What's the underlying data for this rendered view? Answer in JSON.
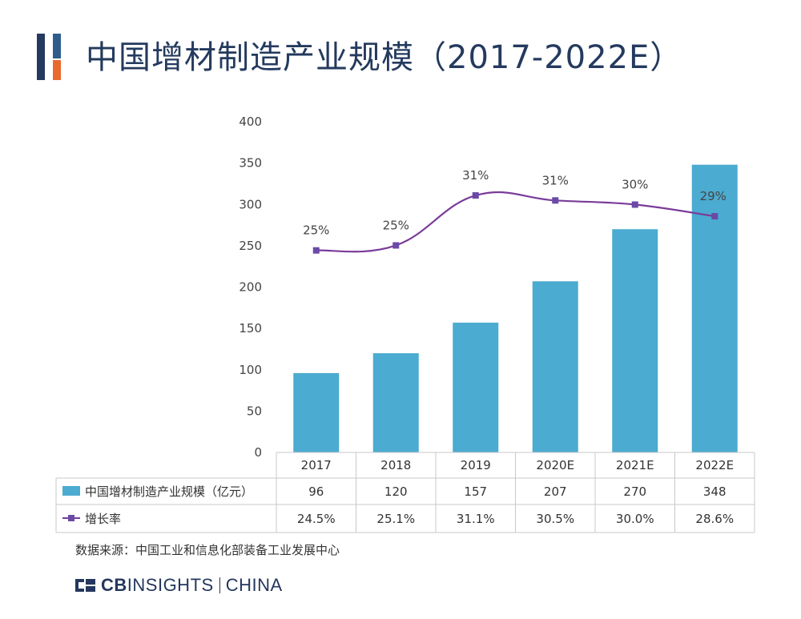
{
  "page": {
    "title": "中国增材制造产业规模（2017-2022E）",
    "source": "数据来源：中国工业和信息化部装备工业发展中心",
    "logo": {
      "brand_bold": "CB",
      "brand_rest": "INSIGHTS",
      "separator": "|",
      "region": "CHINA"
    }
  },
  "colors": {
    "title": "#243a5e",
    "bar": "#4babd0",
    "line": "#7a3b9a",
    "marker": "#6a4aa6",
    "accent_orange": "#e86a2f",
    "table_border": "#c8c8c8"
  },
  "chart_data": {
    "type": "bar",
    "categories": [
      "2017",
      "2018",
      "2019",
      "2020E",
      "2021E",
      "2022E"
    ],
    "series": [
      {
        "name": "中国增材制造产业规模（亿元）",
        "type": "bar",
        "values": [
          96,
          120,
          157,
          207,
          270,
          348
        ],
        "table_labels": [
          "96",
          "120",
          "157",
          "207",
          "270",
          "348"
        ]
      },
      {
        "name": "增长率",
        "type": "line",
        "values": [
          24.5,
          25.1,
          31.1,
          30.5,
          30.0,
          28.6
        ],
        "unit": "%",
        "point_labels": [
          "25%",
          "25%",
          "31%",
          "31%",
          "30%",
          "29%"
        ],
        "table_labels": [
          "24.5%",
          "25.1%",
          "31.1%",
          "30.5%",
          "30.0%",
          "28.6%"
        ]
      }
    ],
    "y_axis": {
      "min": 0,
      "max": 400,
      "ticks": [
        "0",
        "50",
        "100",
        "150",
        "200",
        "250",
        "300",
        "350",
        "400"
      ]
    },
    "grid": false,
    "legend": "data-table-left"
  }
}
